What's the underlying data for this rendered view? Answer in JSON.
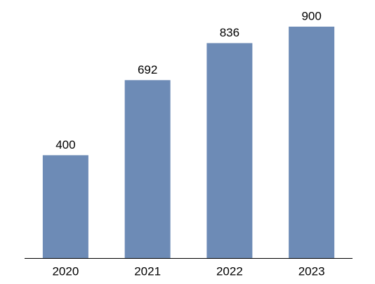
{
  "chart_data": {
    "type": "bar",
    "categories": [
      "2020",
      "2021",
      "2022",
      "2023"
    ],
    "values": [
      400,
      692,
      836,
      900
    ],
    "color": "#6d8bb6"
  }
}
